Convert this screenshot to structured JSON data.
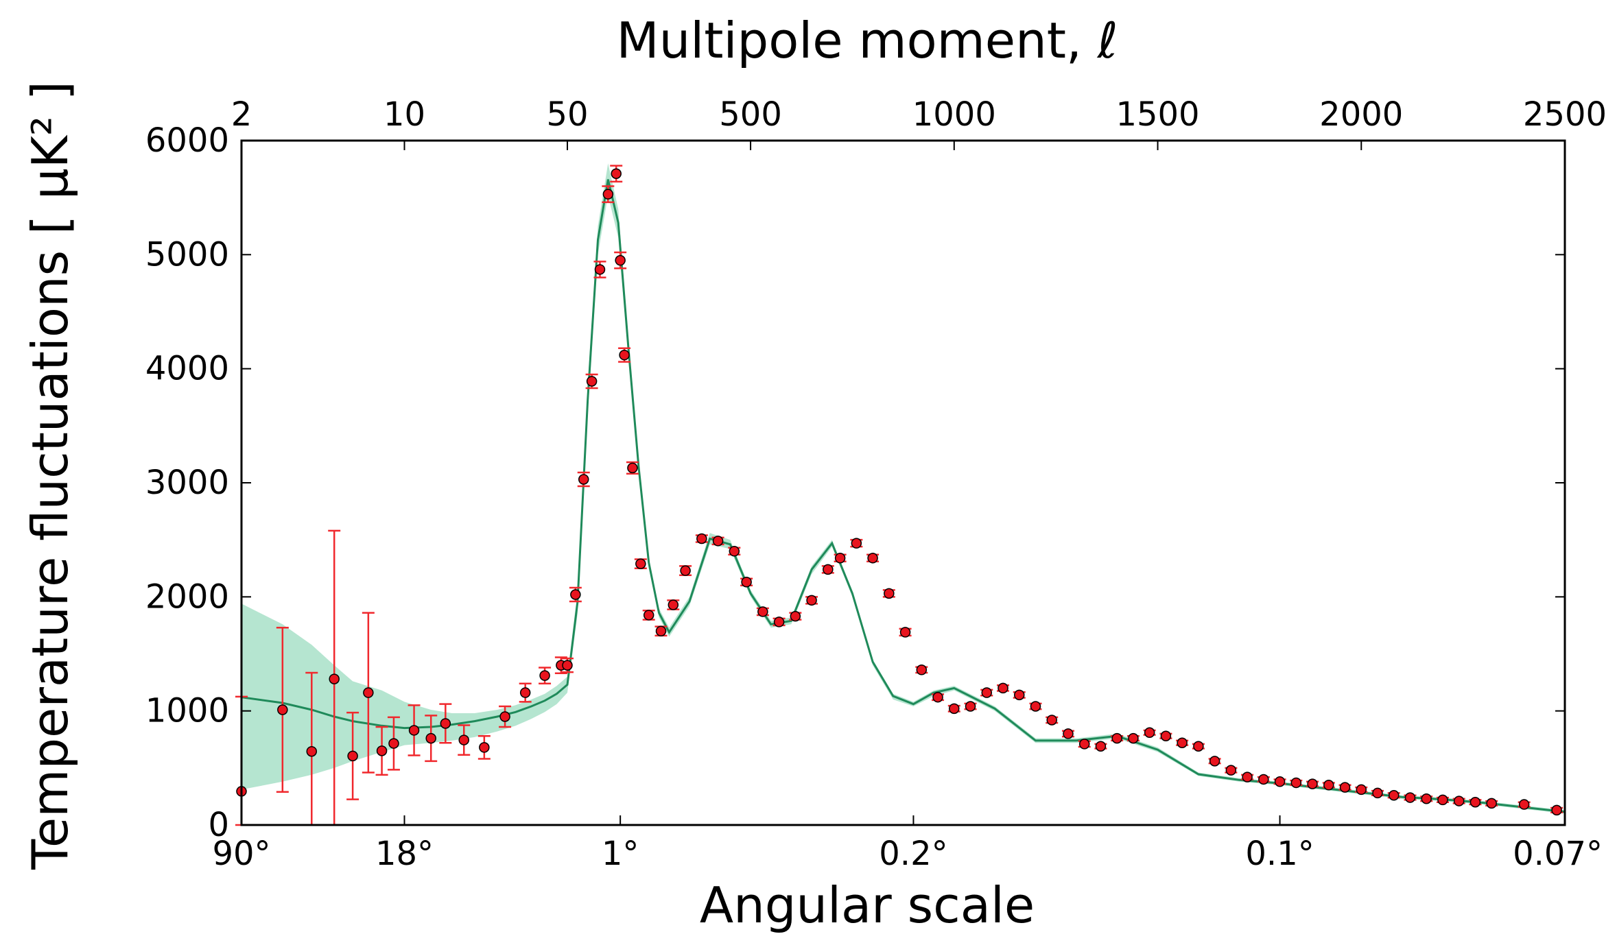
{
  "chart_data": {
    "type": "scatter",
    "xlabel": "Angular scale",
    "x2label": "Multipole moment, ℓ",
    "ylabel": "Temperature fluctuations [ μK² ]",
    "ylim": [
      0,
      6000
    ],
    "xlim": [
      2,
      2500
    ],
    "x_scale": "log for ℓ < 50, linear for ℓ ≥ 50",
    "grid": false,
    "yticks": [
      0,
      1000,
      2000,
      3000,
      4000,
      5000,
      6000
    ],
    "ytick_labels": [
      "0",
      "1000",
      "2000",
      "3000",
      "4000",
      "5000",
      "6000"
    ],
    "top_ticks": [
      {
        "value": 2,
        "label": "2"
      },
      {
        "value": 10,
        "label": "10"
      },
      {
        "value": 50,
        "label": "50"
      },
      {
        "value": 500,
        "label": "500"
      },
      {
        "value": 1000,
        "label": "1000"
      },
      {
        "value": 1500,
        "label": "1500"
      },
      {
        "value": 2000,
        "label": "2000"
      },
      {
        "value": 2500,
        "label": "2500"
      }
    ],
    "bottom_ticks": [
      {
        "ell": 2,
        "label": "90°"
      },
      {
        "ell": 10,
        "label": "18°"
      },
      {
        "ell": 180,
        "label": "1°"
      },
      {
        "ell": 900,
        "label": "0.2°"
      },
      {
        "ell": 1800,
        "label": "0.1°"
      },
      {
        "ell": 2500,
        "label": "0.07°"
      }
    ],
    "colors": {
      "points": "#e8141e",
      "errorbars": "#f0282d",
      "model_line": "#1f8a5a",
      "model_band": "#a8e0c8"
    },
    "series": [
      {
        "kind": "model_band",
        "x": [
          2,
          3,
          4,
          5,
          6,
          8,
          10,
          13,
          16,
          20,
          25,
          30,
          35,
          40,
          45,
          50,
          75,
          100,
          125,
          150,
          175,
          200,
          225,
          250,
          275,
          300,
          350,
          400,
          450,
          500,
          550,
          600,
          650,
          700,
          750,
          800,
          850,
          900,
          950,
          1000,
          1100,
          1200,
          1300,
          1400,
          1500,
          1600,
          1700,
          1800,
          1900,
          2000,
          2100,
          2200,
          2300,
          2400,
          2500
        ],
        "lower": [
          310,
          380,
          440,
          500,
          560,
          640,
          700,
          720,
          740,
          770,
          820,
          870,
          930,
          990,
          1060,
          1160,
          1850,
          3600,
          5000,
          5520,
          5150,
          4100,
          3080,
          2250,
          1820,
          1650,
          1920,
          2460,
          2420,
          2000,
          1730,
          1760,
          2200,
          2440,
          2000,
          1400,
          1100,
          1040,
          1130,
          1180,
          1000,
          720,
          720,
          760,
          640,
          430,
          380,
          350,
          310,
          270,
          230,
          210,
          180,
          140,
          100
        ],
        "upper": [
          1940,
          1760,
          1580,
          1400,
          1260,
          1180,
          1080,
          1010,
          980,
          980,
          1010,
          1050,
          1100,
          1150,
          1220,
          1300,
          2050,
          3860,
          5250,
          5800,
          5400,
          4260,
          3200,
          2340,
          1900,
          1730,
          2000,
          2560,
          2500,
          2060,
          1790,
          1820,
          2270,
          2500,
          2050,
          1450,
          1150,
          1080,
          1180,
          1220,
          1040,
          760,
          760,
          800,
          680,
          460,
          410,
          380,
          340,
          300,
          260,
          240,
          210,
          170,
          130
        ]
      },
      {
        "kind": "model_line",
        "x": [
          2,
          3,
          4,
          5,
          6,
          8,
          10,
          13,
          16,
          20,
          25,
          30,
          35,
          40,
          45,
          50,
          75,
          100,
          125,
          150,
          175,
          200,
          225,
          250,
          275,
          300,
          350,
          400,
          450,
          500,
          550,
          600,
          650,
          700,
          750,
          800,
          850,
          900,
          950,
          1000,
          1100,
          1200,
          1300,
          1400,
          1500,
          1600,
          1700,
          1800,
          1900,
          2000,
          2100,
          2200,
          2300,
          2400,
          2500
        ],
        "y": [
          1120,
          1070,
          1010,
          950,
          910,
          870,
          850,
          860,
          880,
          910,
          950,
          990,
          1040,
          1090,
          1150,
          1230,
          1950,
          3730,
          5130,
          5660,
          5280,
          4180,
          3140,
          2300,
          1860,
          1690,
          1960,
          2510,
          2460,
          2030,
          1760,
          1790,
          2240,
          2470,
          2030,
          1430,
          1130,
          1060,
          1160,
          1200,
          1020,
          740,
          740,
          780,
          660,
          445,
          395,
          365,
          325,
          285,
          245,
          225,
          195,
          155,
          115
        ]
      },
      {
        "kind": "data_points",
        "x": [
          2,
          3,
          4,
          5,
          6,
          7,
          8,
          9,
          11,
          13,
          15,
          18,
          22,
          27,
          33,
          40,
          47,
          50,
          70,
          90,
          110,
          130,
          150,
          170,
          180,
          190,
          210,
          230,
          250,
          280,
          310,
          340,
          380,
          420,
          460,
          490,
          530,
          570,
          610,
          650,
          690,
          720,
          760,
          800,
          840,
          880,
          920,
          960,
          1000,
          1040,
          1080,
          1120,
          1160,
          1200,
          1240,
          1280,
          1320,
          1360,
          1400,
          1440,
          1480,
          1520,
          1560,
          1600,
          1640,
          1680,
          1720,
          1760,
          1800,
          1840,
          1880,
          1920,
          1960,
          2000,
          2040,
          2080,
          2120,
          2160,
          2200,
          2240,
          2280,
          2320,
          2400,
          2480
        ],
        "y": [
          295,
          1010,
          645,
          1280,
          605,
          1160,
          650,
          715,
          830,
          760,
          890,
          745,
          680,
          950,
          1160,
          1310,
          1400,
          1400,
          2020,
          3030,
          3890,
          4870,
          5530,
          5710,
          4950,
          4120,
          3130,
          2290,
          1840,
          1700,
          1930,
          2230,
          2510,
          2490,
          2400,
          2130,
          1870,
          1780,
          1830,
          1970,
          2240,
          2340,
          2470,
          2340,
          2030,
          1690,
          1360,
          1120,
          1020,
          1040,
          1160,
          1200,
          1140,
          1040,
          920,
          800,
          710,
          690,
          760,
          760,
          810,
          780,
          720,
          690,
          560,
          480,
          420,
          400,
          380,
          370,
          360,
          350,
          330,
          310,
          280,
          260,
          240,
          230,
          220,
          210,
          200,
          190,
          180,
          130
        ],
        "err": [
          830,
          720,
          690,
          1300,
          380,
          700,
          210,
          230,
          220,
          200,
          170,
          130,
          100,
          90,
          80,
          70,
          70,
          60,
          60,
          60,
          60,
          70,
          70,
          70,
          70,
          60,
          50,
          40,
          40,
          40,
          40,
          40,
          30,
          30,
          30,
          30,
          30,
          30,
          30,
          30,
          30,
          30,
          30,
          30,
          30,
          30,
          25,
          25,
          25,
          25,
          25,
          25,
          25,
          25,
          25,
          25,
          25,
          20,
          20,
          20,
          20,
          20,
          20,
          20,
          20,
          20,
          20,
          20,
          20,
          20,
          20,
          20,
          20,
          20,
          20,
          20,
          20,
          20,
          20,
          20,
          20,
          20,
          20,
          20
        ]
      }
    ]
  }
}
